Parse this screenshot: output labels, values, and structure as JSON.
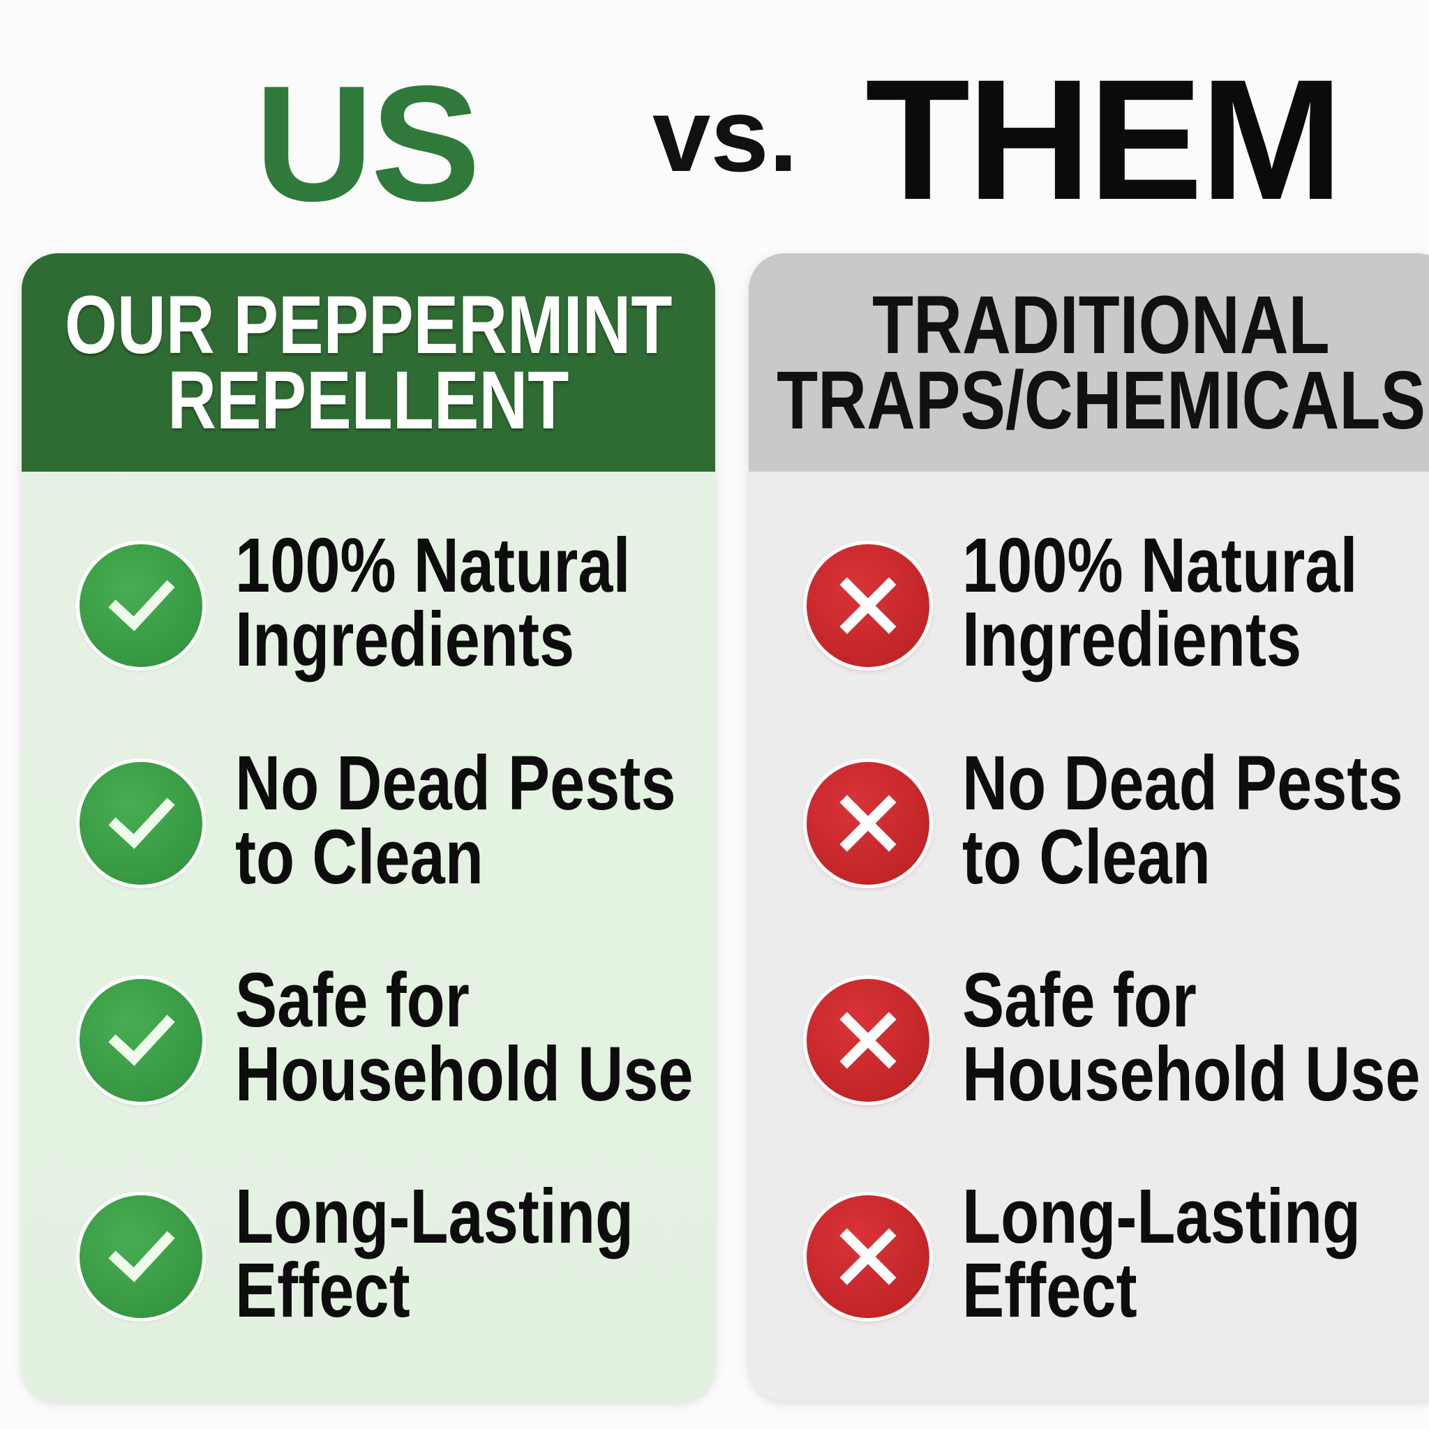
{
  "heading": {
    "us": "US",
    "vs": "vs.",
    "them": "THEM"
  },
  "colors": {
    "us_accent": "#2f6c33",
    "check": "#3a9c47",
    "cross": "#c9272c",
    "them_header": "#c9c9c9"
  },
  "us_card": {
    "title_line1": "OUR PEPPERMINT",
    "title_line2": "REPELLENT",
    "items": [
      {
        "icon": "check-icon",
        "line1": "100% Natural",
        "line2": "Ingredients"
      },
      {
        "icon": "check-icon",
        "line1": "No Dead Pests",
        "line2": "to Clean"
      },
      {
        "icon": "check-icon",
        "line1": "Safe for",
        "line2": "Household Use"
      },
      {
        "icon": "check-icon",
        "line1": "Long-Lasting",
        "line2": "Effect"
      }
    ]
  },
  "them_card": {
    "title_line1": "TRADITIONAL",
    "title_line2": "TRAPS/CHEMICALS",
    "items": [
      {
        "icon": "cross-icon",
        "line1": "100% Natural",
        "line2": "Ingredients"
      },
      {
        "icon": "cross-icon",
        "line1": "No Dead Pests",
        "line2": "to Clean"
      },
      {
        "icon": "cross-icon",
        "line1": "Safe for",
        "line2": "Household Use"
      },
      {
        "icon": "cross-icon",
        "line1": "Long-Lasting",
        "line2": "Effect"
      }
    ]
  }
}
